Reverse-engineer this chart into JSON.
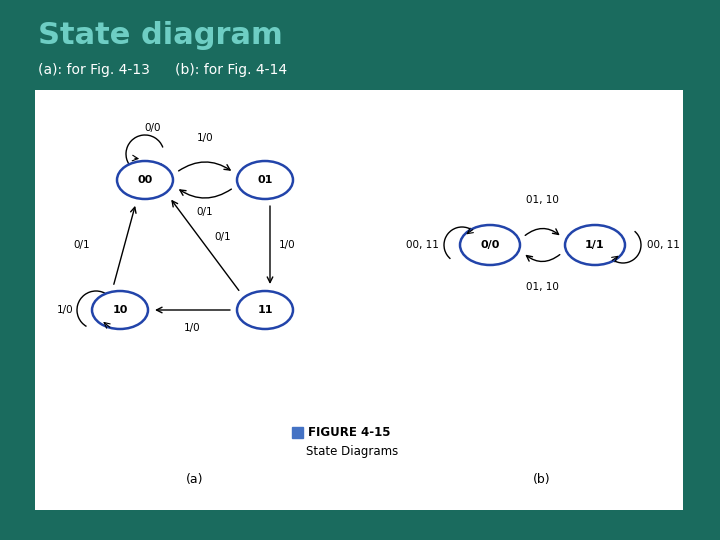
{
  "title": "State diagram",
  "subtitle_a": "(a): for Fig. 4-13",
  "subtitle_b": "(b): for Fig. 4-14",
  "bg_color": "#1a6b5e",
  "title_color": "#6ecec4",
  "subtitle_color": "#ffffff",
  "node_edge_color": "#2244aa",
  "figure_caption": "FIGURE 4-15",
  "figure_subcaption": "State Diagrams",
  "caption_box_color": "#4472c4"
}
